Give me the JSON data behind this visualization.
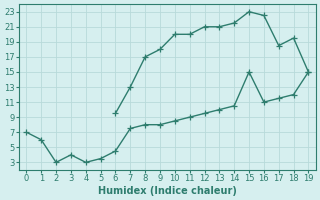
{
  "xlabel": "Humidex (Indice chaleur)",
  "x": [
    0,
    1,
    2,
    3,
    4,
    5,
    6,
    7,
    8,
    9,
    10,
    11,
    12,
    13,
    14,
    15,
    16,
    17,
    18,
    19,
    19,
    18,
    17,
    16,
    15,
    14,
    13,
    12,
    11,
    10,
    9,
    8,
    7,
    6
  ],
  "y": [
    7,
    6,
    3,
    4,
    3,
    3.5,
    4.5,
    7.5,
    8,
    8,
    8.5,
    9,
    9.5,
    10,
    10.5,
    15,
    11,
    11.5,
    12,
    15,
    15,
    19.5,
    18.5,
    22.5,
    23,
    21.5,
    21,
    21,
    20,
    20,
    18,
    17,
    13,
    9.5
  ],
  "line_color": "#2e7d6e",
  "bg_color": "#d6efef",
  "grid_color": "#b8dada",
  "ylim": [
    2,
    24
  ],
  "xlim": [
    -0.5,
    19.5
  ],
  "yticks": [
    3,
    5,
    7,
    9,
    11,
    13,
    15,
    17,
    19,
    21,
    23
  ],
  "xticks": [
    0,
    1,
    2,
    3,
    4,
    5,
    6,
    7,
    8,
    9,
    10,
    11,
    12,
    13,
    14,
    15,
    16,
    17,
    18,
    19
  ],
  "marker": "+",
  "linewidth": 1.0,
  "markersize": 4,
  "label_fontsize": 7,
  "tick_fontsize": 6
}
